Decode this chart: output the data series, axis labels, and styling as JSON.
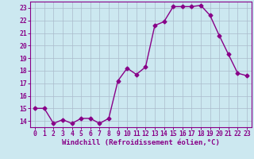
{
  "x": [
    0,
    1,
    2,
    3,
    4,
    5,
    6,
    7,
    8,
    9,
    10,
    11,
    12,
    13,
    14,
    15,
    16,
    17,
    18,
    19,
    20,
    21,
    22,
    23
  ],
  "y": [
    15,
    15,
    13.8,
    14.1,
    13.8,
    14.2,
    14.2,
    13.8,
    14.2,
    17.2,
    18.2,
    17.7,
    18.3,
    21.6,
    21.9,
    23.1,
    23.1,
    23.1,
    23.2,
    22.4,
    20.8,
    19.3,
    17.8,
    17.6
  ],
  "line_color": "#880088",
  "marker": "D",
  "marker_size": 2.5,
  "xlabel": "Windchill (Refroidissement éolien,°C)",
  "xlabel_fontsize": 6.5,
  "ylim": [
    13.5,
    23.5
  ],
  "xlim": [
    -0.5,
    23.5
  ],
  "yticks": [
    14,
    15,
    16,
    17,
    18,
    19,
    20,
    21,
    22,
    23
  ],
  "xticks": [
    0,
    1,
    2,
    3,
    4,
    5,
    6,
    7,
    8,
    9,
    10,
    11,
    12,
    13,
    14,
    15,
    16,
    17,
    18,
    19,
    20,
    21,
    22,
    23
  ],
  "bg_color": "#cce8f0",
  "grid_color": "#aabbcc",
  "tick_fontsize": 5.8,
  "line_width": 1.0
}
